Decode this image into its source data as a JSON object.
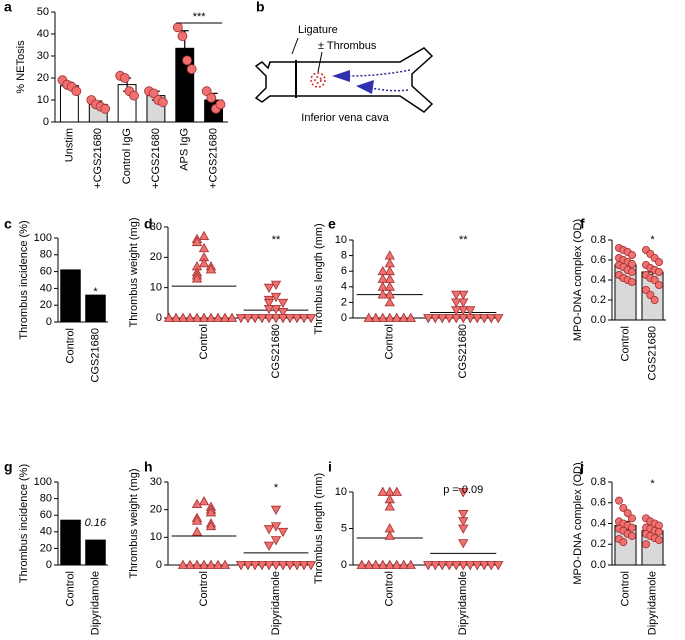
{
  "diagram": {
    "panel": "b",
    "labels": [
      "Ligature",
      "± Thrombus",
      "Inferior vena cava"
    ]
  },
  "chart_data": [
    {
      "panel": "a",
      "type": "bar",
      "ylabel": "% NETosis",
      "annotation": "***",
      "categories": [
        "Unstim",
        "+CGS21680",
        "Control IgG",
        "+CGS21680",
        "APS IgG",
        "+CGS21680"
      ],
      "values": [
        16.5,
        8,
        17,
        12,
        33.5,
        10
      ],
      "errors": [
        1.5,
        1.5,
        3,
        2,
        8,
        3
      ],
      "colors": [
        "#ffffff",
        "#d9d9d9",
        "#ffffff",
        "#d9d9d9",
        "#000000",
        "#000000"
      ],
      "points": [
        [
          19,
          17,
          16,
          14
        ],
        [
          10,
          8,
          7,
          6
        ],
        [
          21,
          20,
          14,
          12
        ],
        [
          14,
          13,
          10,
          9
        ],
        [
          43,
          39,
          28,
          24
        ],
        [
          14,
          11,
          6,
          8
        ]
      ],
      "point_color": "#f07070",
      "ylim": [
        0,
        50
      ],
      "yticks": [
        0,
        10,
        20,
        30,
        40,
        50
      ]
    },
    {
      "panel": "c",
      "type": "bar",
      "ylabel": "Thrombus incidence (%)",
      "annotation": "*",
      "categories": [
        "Control",
        "CGS21680"
      ],
      "values": [
        62,
        32
      ],
      "colors": [
        "#000000",
        "#000000"
      ],
      "ylim": [
        0,
        100
      ],
      "yticks": [
        0,
        20,
        40,
        60,
        80,
        100
      ]
    },
    {
      "panel": "d",
      "type": "strip",
      "ylabel": "Thrombus weight (mg)",
      "annotation": "**",
      "categories": [
        "Control",
        "CGS21680"
      ],
      "markers": [
        "triangle-up",
        "triangle-down"
      ],
      "point_color": "#f07070",
      "points": [
        [
          27,
          26,
          25,
          23,
          20,
          18,
          17,
          17,
          16,
          15,
          14,
          13,
          0,
          0,
          0,
          0,
          0,
          0,
          0,
          0,
          0,
          0
        ],
        [
          11,
          10,
          7,
          6,
          5,
          5,
          3,
          3,
          2,
          0,
          0,
          0,
          0,
          0,
          0,
          0,
          0,
          0,
          0,
          0
        ]
      ],
      "means": [
        10.5,
        2.6
      ],
      "ylim": [
        0,
        30
      ],
      "yticks": [
        0,
        10,
        20,
        30
      ]
    },
    {
      "panel": "e",
      "type": "strip",
      "ylabel": "Thrombus length (mm)",
      "annotation": "**",
      "categories": [
        "Control",
        "CGS21680"
      ],
      "markers": [
        "triangle-up",
        "triangle-down"
      ],
      "point_color": "#f07070",
      "points": [
        [
          8,
          7,
          6,
          6,
          5,
          5,
          4,
          4,
          3,
          3,
          2,
          0,
          0,
          0,
          0,
          0,
          0,
          0
        ],
        [
          3,
          3,
          2,
          2,
          1,
          1,
          1,
          0,
          0,
          0,
          0,
          0,
          0,
          0,
          0,
          0,
          0,
          0
        ]
      ],
      "means": [
        3,
        0.7
      ],
      "ylim": [
        0,
        10
      ],
      "yticks": [
        0,
        2,
        4,
        6,
        8,
        10
      ]
    },
    {
      "panel": "f",
      "type": "bar",
      "ylabel": "MPO-DNA complex (OD)",
      "annotation": "*",
      "categories": [
        "Control",
        "CGS21680"
      ],
      "values": [
        0.55,
        0.48
      ],
      "errors": [
        0.04,
        0.05
      ],
      "colors": [
        "#d9d9d9",
        "#d9d9d9"
      ],
      "points": [
        [
          0.72,
          0.7,
          0.68,
          0.65,
          0.62,
          0.6,
          0.58,
          0.56,
          0.55,
          0.53,
          0.5,
          0.48,
          0.45,
          0.42,
          0.4,
          0.38
        ],
        [
          0.7,
          0.66,
          0.62,
          0.58,
          0.55,
          0.52,
          0.5,
          0.48,
          0.45,
          0.42,
          0.4,
          0.35,
          0.3,
          0.25,
          0.2
        ]
      ],
      "point_color": "#f07070",
      "ylim": [
        0,
        0.8
      ],
      "yticks": [
        {
          "value": 0,
          "label": "0.0"
        },
        0.2,
        0.4,
        0.6,
        0.8
      ]
    },
    {
      "panel": "g",
      "type": "bar",
      "ylabel": "Thrombus incidence (%)",
      "annotation": "p = 0.16",
      "categories": [
        "Control",
        "Dipyridamole"
      ],
      "values": [
        54,
        30
      ],
      "colors": [
        "#000000",
        "#000000"
      ],
      "ylim": [
        0,
        100
      ],
      "yticks": [
        0,
        20,
        40,
        60,
        80,
        100
      ]
    },
    {
      "panel": "h",
      "type": "strip",
      "ylabel": "Thrombus weight (mg)",
      "annotation": "*",
      "categories": [
        "Control",
        "Dipyridamole"
      ],
      "markers": [
        "triangle-up",
        "triangle-down"
      ],
      "point_color": "#f07070",
      "points": [
        [
          23,
          22,
          21,
          20,
          19,
          17,
          16,
          15,
          14,
          12,
          0,
          0,
          0,
          0,
          0,
          0,
          0
        ],
        [
          20,
          14,
          13,
          12,
          9,
          7,
          0,
          0,
          0,
          0,
          0,
          0,
          0,
          0,
          0,
          0,
          0
        ]
      ],
      "means": [
        10.5,
        4.4
      ],
      "ylim": [
        0,
        30
      ],
      "yticks": [
        0,
        10,
        20,
        30
      ]
    },
    {
      "panel": "i",
      "type": "strip",
      "ylabel": "Thrombus length (mm)",
      "annotation": "p = 0.09",
      "categories": [
        "Control",
        "Dipyridamole"
      ],
      "markers": [
        "triangle-up",
        "triangle-down"
      ],
      "point_color": "#f07070",
      "points": [
        [
          10,
          10,
          10,
          9,
          8,
          5,
          4,
          0,
          0,
          0,
          0,
          0,
          0,
          0,
          0
        ],
        [
          10,
          7,
          6,
          5,
          3,
          0,
          0,
          0,
          0,
          0,
          0,
          0,
          0,
          0,
          0,
          0
        ]
      ],
      "means": [
        3.7,
        1.6
      ],
      "ylim": [
        0,
        10
      ],
      "yticks": [
        0,
        5,
        10
      ]
    },
    {
      "panel": "j",
      "type": "bar",
      "ylabel": "MPO-DNA complex (OD)",
      "annotation": "*",
      "categories": [
        "Control",
        "Dipyridamole"
      ],
      "values": [
        0.38,
        0.33
      ],
      "errors": [
        0.04,
        0.03
      ],
      "colors": [
        "#d9d9d9",
        "#d9d9d9"
      ],
      "points": [
        [
          0.62,
          0.55,
          0.5,
          0.45,
          0.42,
          0.4,
          0.38,
          0.36,
          0.35,
          0.33,
          0.3,
          0.28,
          0.25,
          0.22
        ],
        [
          0.45,
          0.42,
          0.4,
          0.38,
          0.36,
          0.35,
          0.33,
          0.32,
          0.3,
          0.28,
          0.26,
          0.24,
          0.2
        ]
      ],
      "point_color": "#f07070",
      "ylim": [
        0,
        0.8
      ],
      "yticks": [
        {
          "value": 0,
          "label": "0.0"
        },
        0.2,
        0.4,
        0.6,
        0.8
      ]
    }
  ]
}
